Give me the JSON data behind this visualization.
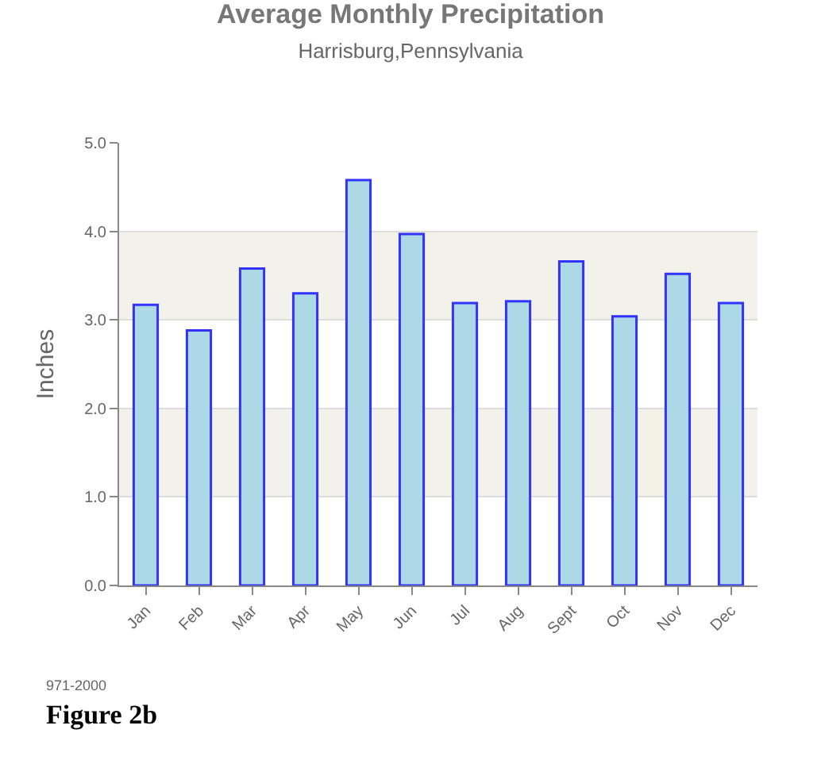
{
  "chart_data": {
    "type": "bar",
    "title": "Average Monthly Precipitation",
    "subtitle": "Harrisburg,Pennsylvania",
    "ylabel": "Inches",
    "categories": [
      "Jan",
      "Feb",
      "Mar",
      "Apr",
      "May",
      "Jun",
      "Jul",
      "Aug",
      "Sept",
      "Oct",
      "Nov",
      "Dec"
    ],
    "values": [
      3.17,
      2.88,
      3.58,
      3.3,
      4.58,
      3.97,
      3.19,
      3.21,
      3.66,
      3.04,
      3.52,
      3.19
    ],
    "color": "#add8e6",
    "ylim": [
      0,
      5
    ],
    "yticks": [
      {
        "value": 0,
        "label": "0.0"
      },
      {
        "value": 1,
        "label": "1.0"
      },
      {
        "value": 2,
        "label": "2.0"
      },
      {
        "value": 3,
        "label": "3.0"
      },
      {
        "value": 4,
        "label": "4.0"
      },
      {
        "value": 5,
        "label": "5.0"
      }
    ],
    "grid": "y",
    "bands": [
      {
        "axis": "y",
        "from": 1,
        "to": 2,
        "color": "#f3f2ea"
      },
      {
        "axis": "y",
        "from": 3,
        "to": 4,
        "color": "#f3f2ea"
      }
    ],
    "annotations": [
      "971-2000",
      "Figure 2b"
    ]
  }
}
